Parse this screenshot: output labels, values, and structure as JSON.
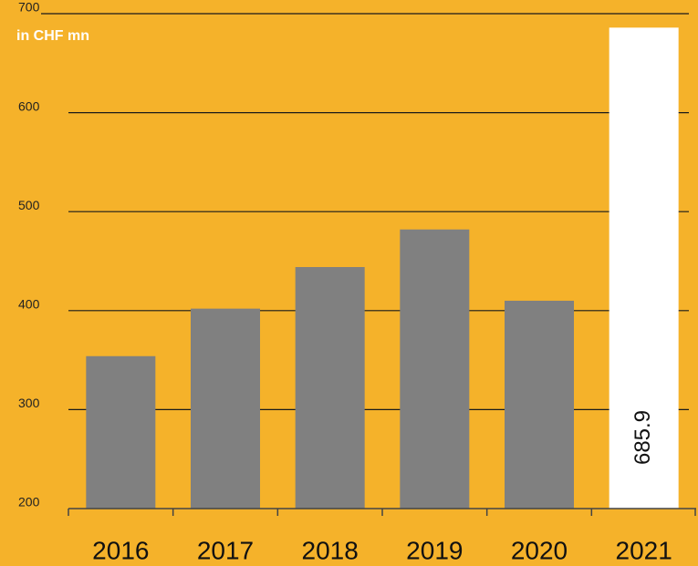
{
  "chart_data": {
    "type": "bar",
    "y_label": "in CHF mn",
    "categories": [
      "2016",
      "2017",
      "2018",
      "2019",
      "2020",
      "2021"
    ],
    "values": [
      354,
      402,
      444,
      482,
      410,
      685.9
    ],
    "value_labels": [
      null,
      null,
      null,
      null,
      null,
      "685.9"
    ],
    "colors": [
      "#808080",
      "#808080",
      "#808080",
      "#808080",
      "#808080",
      "#ffffff"
    ],
    "background": "#f5b22a",
    "ylim": [
      200,
      700
    ],
    "yticks": [
      200,
      300,
      400,
      500,
      600,
      700
    ],
    "grid": true
  }
}
